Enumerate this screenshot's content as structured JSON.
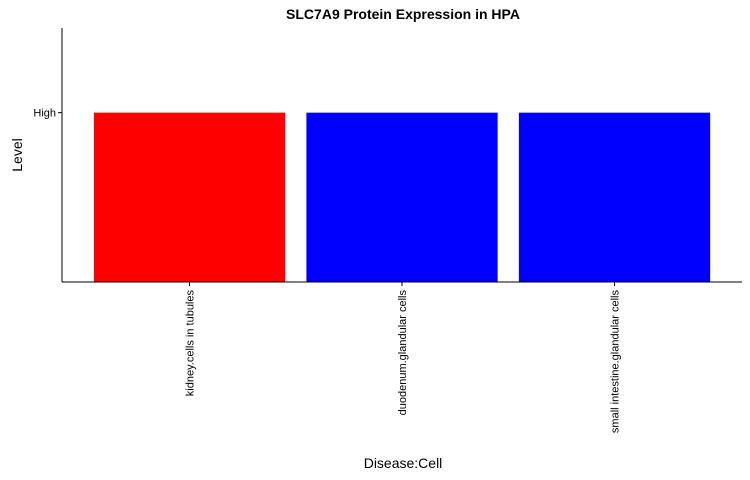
{
  "chart_data": {
    "type": "bar",
    "title": "SLC7A9 Protein Expression in HPA",
    "xlabel": "Disease:Cell",
    "ylabel": "Level",
    "categories": [
      "kidney.cells in tubules",
      "duodenum.glandular cells",
      "small intestine.glandular cells"
    ],
    "values": [
      1,
      1,
      1
    ],
    "value_labels": [
      "High",
      "High",
      "High"
    ],
    "colors": [
      "#ff0000",
      "#0000ff",
      "#0000ff"
    ],
    "y_ticks": [
      {
        "value": 1,
        "label": "High"
      }
    ],
    "ylim": [
      0,
      1.5
    ],
    "grid": false,
    "legend": "none"
  }
}
